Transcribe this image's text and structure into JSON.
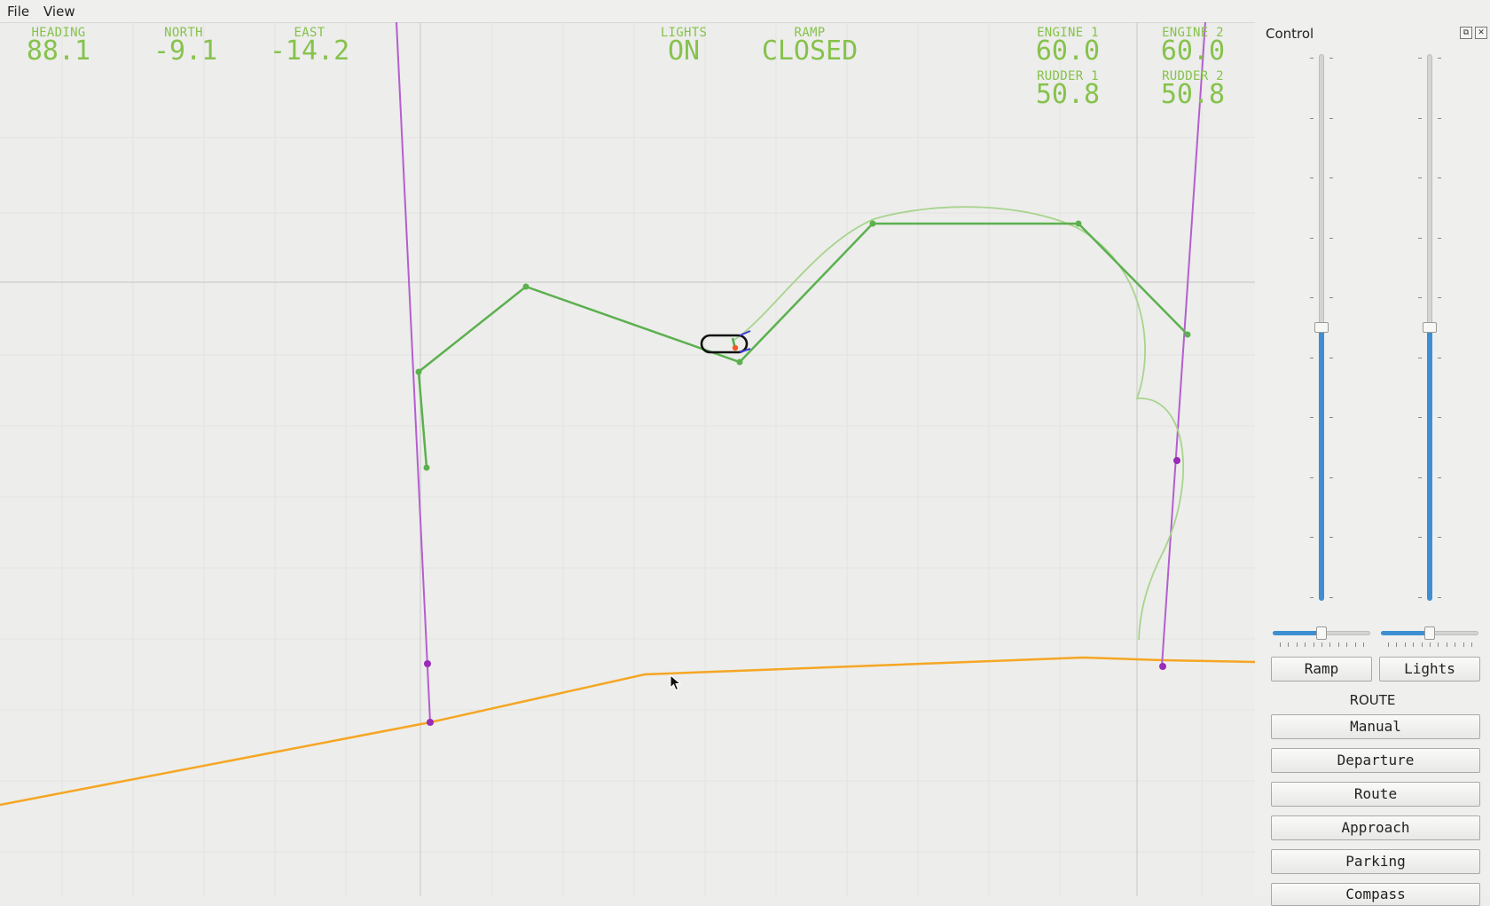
{
  "menu": {
    "file": "File",
    "view": "View"
  },
  "readouts": [
    {
      "label": "HEADING",
      "value": "88.1"
    },
    {
      "label": "NORTH",
      "value": "-9.1"
    },
    {
      "label": "EAST",
      "value": "-14.2"
    },
    {
      "label": "LIGHTS",
      "value": "ON"
    },
    {
      "label": "RAMP",
      "value": "CLOSED"
    },
    {
      "label": "ENGINE 1",
      "value": "60.0"
    },
    {
      "label": "ENGINE 2",
      "value": "60.0"
    },
    {
      "label": "RUDDER 1",
      "value": "50.8"
    },
    {
      "label": "RUDDER 2",
      "value": "50.8"
    }
  ],
  "control": {
    "title": "Control",
    "float_icon": "⧉",
    "close_icon": "✕",
    "slider_left_level": 0.5,
    "slider_right_level": 0.5,
    "hslider_left_level": 0.5,
    "hslider_right_level": 0.5,
    "ramp_label": "Ramp",
    "lights_label": "Lights",
    "route_section": "ROUTE",
    "route_buttons": [
      "Manual",
      "Departure",
      "Route",
      "Approach",
      "Parking",
      "Compass"
    ]
  },
  "colors": {
    "background": "#ededeb",
    "readout": "#86c24c",
    "path": "#5cb04f",
    "path_light": "#a8d48e",
    "boundary": "#b35fcf",
    "marker": "#9a2bb8",
    "shoreline": "#f5a623",
    "slider_fill": "#3d8fd1"
  },
  "icons": [
    "float-icon",
    "close-icon",
    "mouse-cursor-icon",
    "vessel-icon"
  ]
}
